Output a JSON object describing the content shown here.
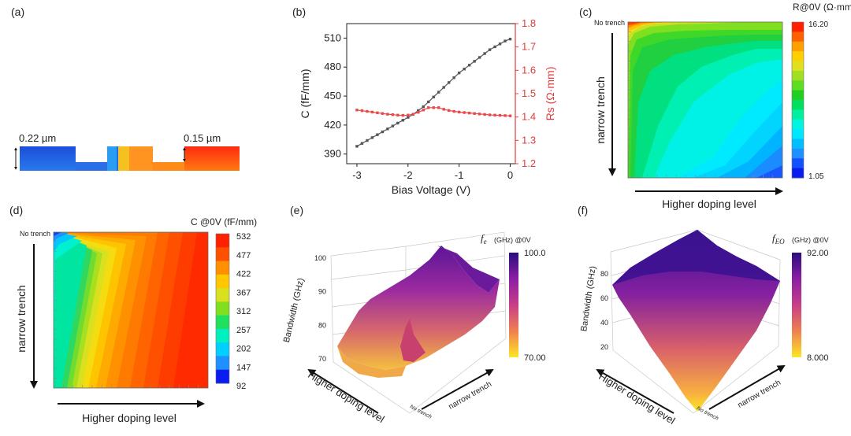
{
  "panels": {
    "a": {
      "label": "(a)",
      "dim_left": "0.22 µm",
      "dim_right": "0.15 µm"
    },
    "b": {
      "label": "(b)"
    },
    "c": {
      "label": "(c)",
      "colorbar_title": "R@0V (Ω·mm)",
      "colorbar_max": "16.20",
      "colorbar_min": "1.05",
      "y_annot": "No trench",
      "y_arrow_label": "narrow trench",
      "x_arrow_label": "Higher doping level"
    },
    "d": {
      "label": "(d)",
      "colorbar_title": "C @0V (fF/mm)",
      "colorbar_ticks": [
        "532",
        "477",
        "422",
        "367",
        "312",
        "257",
        "202",
        "147",
        "92"
      ],
      "y_annot": "No trench",
      "y_arrow_label": "narrow trench",
      "x_arrow_label": "Higher doping level"
    },
    "e": {
      "label": "(e)",
      "cb_f": "f",
      "cb_sub": "e",
      "cb_rest": "(GHz) @0V",
      "colorbar_max": "100.0",
      "colorbar_min": "70.00",
      "zlabel": "Bandwidth (GHz)",
      "zticks": [
        "100",
        "90",
        "80",
        "70"
      ],
      "x_arrow_label": "Higher doping level",
      "y_arrow_label": "narrow trench",
      "corner_label": "No trench"
    },
    "f": {
      "label": "(f)",
      "cb_f": "f",
      "cb_sub": "EO",
      "cb_rest": "(GHz) @0V",
      "colorbar_max": "92.00",
      "colorbar_min": "8.000",
      "zlabel": "Bandwidth (GHz)",
      "zticks": [
        "80",
        "60",
        "40",
        "20"
      ],
      "x_arrow_label": "Higher doping level",
      "y_arrow_label": "narrow trench",
      "corner_label": "No trench"
    }
  },
  "colors": {
    "capacitance": "#555555",
    "resistance": "#e84a4a",
    "right_axis": "#e03c3c"
  },
  "chart_data": [
    {
      "panel": "b",
      "type": "line",
      "xlabel": "Bias Voltage (V)",
      "ylabel": "C (fF/mm)",
      "y2label": "Rs (Ω·mm)",
      "xlim": [
        -3.2,
        0.1
      ],
      "ylim": [
        380,
        525
      ],
      "y2lim": [
        1.2,
        1.8
      ],
      "xticks": [
        -3,
        -2,
        -1,
        0
      ],
      "xtick_labels": [
        "-3",
        "-2",
        "-1",
        "0"
      ],
      "yticks": [
        390,
        420,
        450,
        480,
        510
      ],
      "y2ticks": [
        1.2,
        1.3,
        1.4,
        1.5,
        1.6,
        1.7,
        1.8
      ],
      "y2tick_labels": [
        "1.2",
        "1.3",
        "1.4",
        "1.5",
        "1.6",
        "1.7",
        "1.8"
      ],
      "series": [
        {
          "axis": "left",
          "x": [
            -3.0,
            -2.9,
            -2.8,
            -2.7,
            -2.6,
            -2.5,
            -2.4,
            -2.3,
            -2.2,
            -2.1,
            -2.0,
            -1.9,
            -1.8,
            -1.7,
            -1.6,
            -1.5,
            -1.4,
            -1.3,
            -1.2,
            -1.1,
            -1.0,
            -0.9,
            -0.8,
            -0.7,
            -0.6,
            -0.5,
            -0.4,
            -0.3,
            -0.2,
            -0.1,
            0.0
          ],
          "values": [
            398,
            401,
            404,
            407,
            410,
            413,
            416,
            419,
            422,
            425,
            428,
            431,
            435,
            439,
            444,
            449,
            454,
            459,
            464,
            469,
            474,
            478,
            482,
            486,
            490,
            494,
            498,
            501,
            504,
            507,
            509
          ]
        },
        {
          "axis": "right",
          "x": [
            -3.0,
            -2.9,
            -2.8,
            -2.7,
            -2.6,
            -2.5,
            -2.4,
            -2.3,
            -2.2,
            -2.1,
            -2.0,
            -1.9,
            -1.8,
            -1.7,
            -1.6,
            -1.5,
            -1.4,
            -1.3,
            -1.2,
            -1.1,
            -1.0,
            -0.9,
            -0.8,
            -0.7,
            -0.6,
            -0.5,
            -0.4,
            -0.3,
            -0.2,
            -0.1,
            0.0
          ],
          "values": [
            1.43,
            1.427,
            1.424,
            1.421,
            1.418,
            1.415,
            1.412,
            1.41,
            1.408,
            1.407,
            1.408,
            1.412,
            1.42,
            1.43,
            1.44,
            1.44,
            1.44,
            1.433,
            1.428,
            1.424,
            1.421,
            1.419,
            1.417,
            1.415,
            1.413,
            1.411,
            1.409,
            1.408,
            1.407,
            1.406,
            1.405
          ]
        }
      ]
    },
    {
      "panel": "c",
      "type": "heatmap",
      "color_range": [
        1.05,
        16.2
      ],
      "colormap": [
        "#0a1cf0",
        "#1550ff",
        "#1e90ff",
        "#00bfff",
        "#00e6ff",
        "#00f5e0",
        "#00f0a0",
        "#00e060",
        "#20d020",
        "#60dd20",
        "#a0e020",
        "#e0e020",
        "#ffd000",
        "#ffa000",
        "#ff6000",
        "#ff2000"
      ]
    },
    {
      "panel": "d",
      "type": "heatmap",
      "color_range": [
        92,
        532
      ],
      "colormap": [
        "#0a1cf0",
        "#1e90ff",
        "#00d0ff",
        "#00f0c0",
        "#20e060",
        "#80e020",
        "#d8e020",
        "#ffc800",
        "#ff9000",
        "#ff5000",
        "#ff2000"
      ]
    },
    {
      "panel": "e",
      "type": "surface",
      "color_range": [
        70,
        100
      ],
      "colormap": [
        "#fde725",
        "#f9b641",
        "#ec7a5b",
        "#c83e88",
        "#8b1fa3",
        "#3b0f8f"
      ]
    },
    {
      "panel": "f",
      "type": "surface",
      "color_range": [
        8,
        92
      ],
      "colormap": [
        "#fde725",
        "#f9b641",
        "#ec7a5b",
        "#c83e88",
        "#8b1fa3",
        "#3b0f8f"
      ]
    }
  ]
}
